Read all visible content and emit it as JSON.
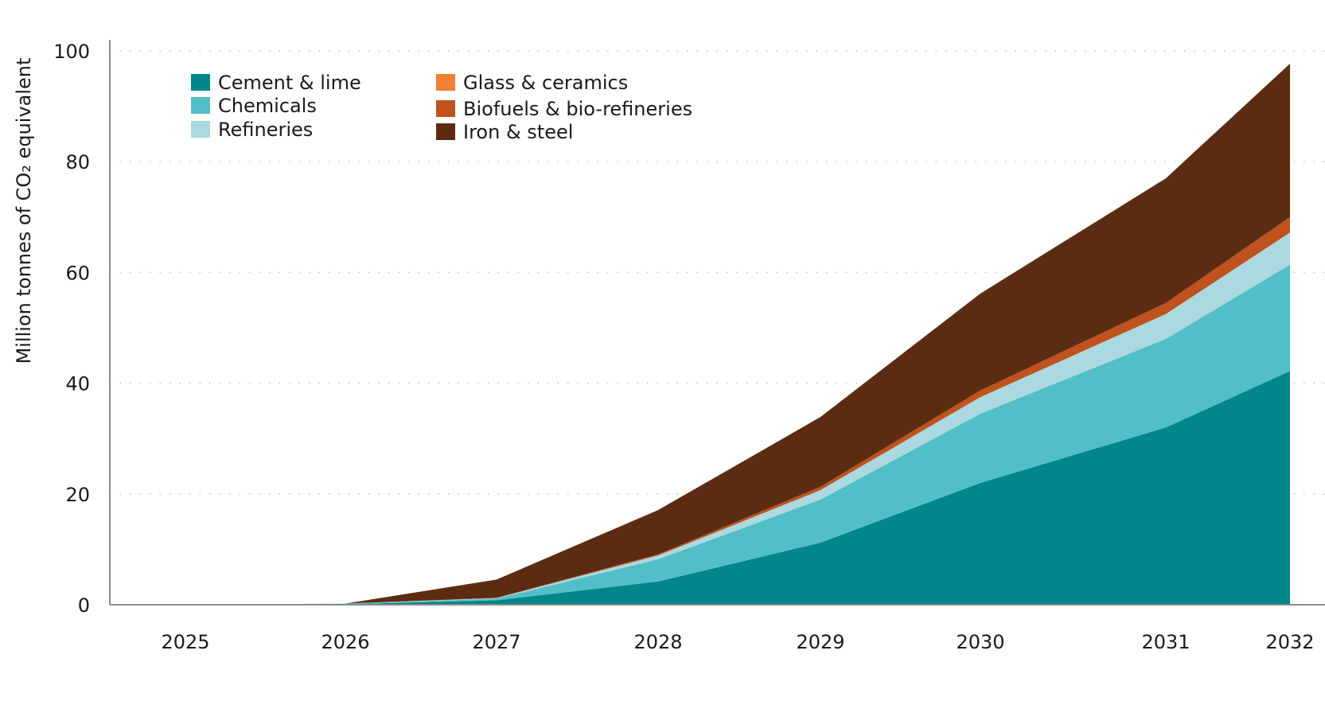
{
  "chart_data": {
    "type": "area",
    "stacked": true,
    "x": [
      "2025",
      "2026",
      "2027",
      "2028",
      "2029",
      "2030",
      "2031",
      "2032"
    ],
    "xlabel": "",
    "ylabel": "Million tonnes of CO₂ equivalent",
    "ylim": [
      0,
      100
    ],
    "yticks": [
      0,
      20,
      40,
      60,
      80,
      100
    ],
    "grid": true,
    "legend_position": "top-left",
    "series": [
      {
        "name": "Cement & lime",
        "color": "#00868B",
        "values": [
          0,
          0.1,
          0.8,
          4.2,
          11.2,
          22.0,
          32.0,
          42.2
        ]
      },
      {
        "name": "Chemicals",
        "color": "#52BEC7",
        "values": [
          0,
          0.1,
          0.3,
          4.0,
          7.8,
          12.5,
          16.0,
          19.2
        ]
      },
      {
        "name": "Refineries",
        "color": "#ACD8DF",
        "values": [
          0,
          0.02,
          0.1,
          0.7,
          1.7,
          3.0,
          4.5,
          5.8
        ]
      },
      {
        "name": "Glass & ceramics",
        "color": "#F08132",
        "values": [
          0,
          0,
          0,
          0,
          0,
          0,
          0,
          0
        ]
      },
      {
        "name": "Biofuels & bio-refineries",
        "color": "#BF521E",
        "values": [
          0,
          0,
          0.05,
          0.2,
          0.6,
          1.2,
          2.0,
          2.8
        ]
      },
      {
        "name": "Iron & steel",
        "color": "#5C2C12",
        "values": [
          0,
          0,
          3.3,
          8.0,
          12.6,
          17.5,
          22.5,
          27.7
        ]
      }
    ]
  }
}
